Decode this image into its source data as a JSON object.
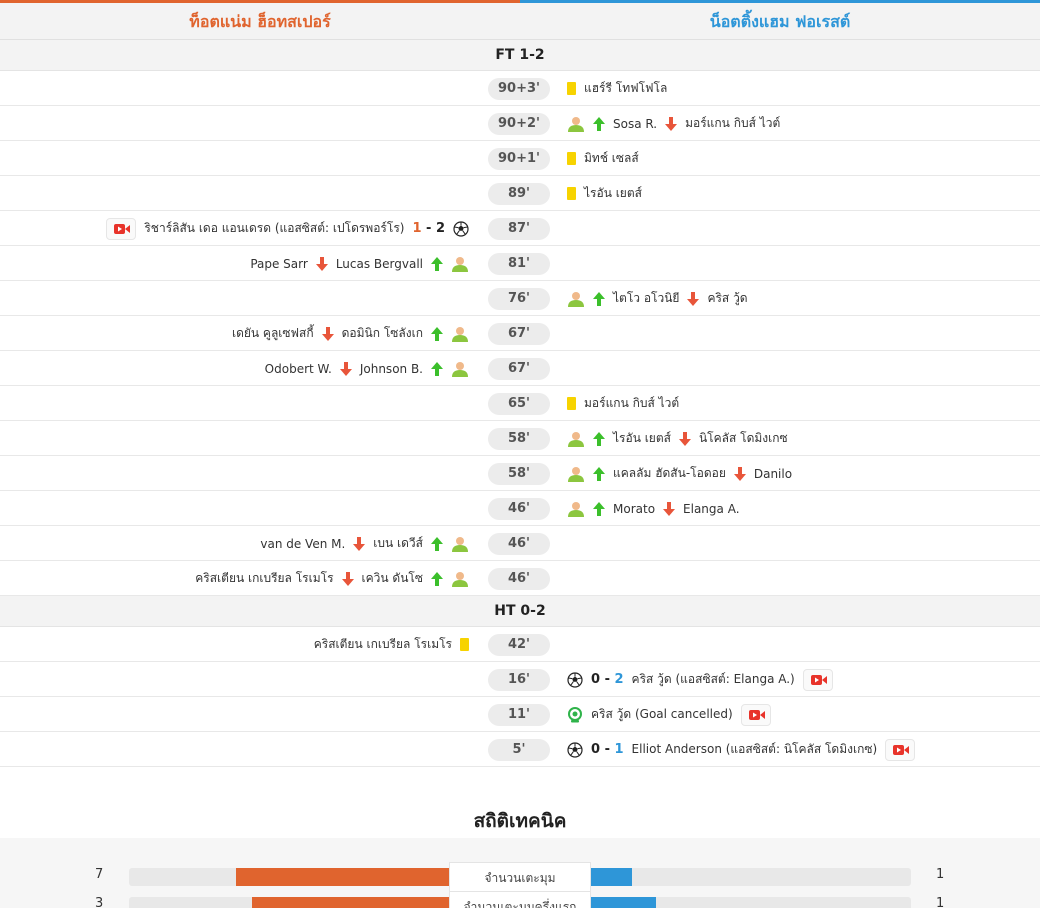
{
  "teams": {
    "home": "ท็อตแน่ม ฮ็อทสเปอร์",
    "away": "น็อตติ้งแฮม ฟอเรสต์"
  },
  "colors": {
    "home": "#e0642e",
    "away": "#2e96d8",
    "yellow_card": "#f7d300"
  },
  "sections": {
    "fulltime": "FT 1-2",
    "halftime": "HT 0-2"
  },
  "events": [
    {
      "minute": "90+3'",
      "away": {
        "type": "yellow",
        "player": "แฮร์รี โทฟโฟโล"
      }
    },
    {
      "minute": "90+2'",
      "away": {
        "type": "sub",
        "in": "Sosa R.",
        "out": "มอร์แกน กิบส์ ไวต์"
      }
    },
    {
      "minute": "90+1'",
      "away": {
        "type": "yellow",
        "player": "มิทช์ เซลส์"
      }
    },
    {
      "minute": "89'",
      "away": {
        "type": "yellow",
        "player": "ไรอัน เยตส์"
      }
    },
    {
      "minute": "87'",
      "home": {
        "type": "goal",
        "text": "ริชาร์ลิสัน เดอ แอนเดรด (แอสซิสต์: เปโดรพอร์โร)",
        "score_home": "1",
        "score_sep": "-",
        "score_away": "2"
      }
    },
    {
      "minute": "81'",
      "home": {
        "type": "sub",
        "in": "Lucas Bergvall",
        "out": "Pape Sarr"
      }
    },
    {
      "minute": "76'",
      "away": {
        "type": "sub",
        "in": "ไตโว อโวนิยี",
        "out": "คริส วู้ด"
      }
    },
    {
      "minute": "67'",
      "home": {
        "type": "sub",
        "in": "ดอมินิก โซลังเก",
        "out": "เดยัน คูลูเซฟสกี้"
      }
    },
    {
      "minute": "67'",
      "home": {
        "type": "sub",
        "in": "Johnson B.",
        "out": "Odobert W."
      }
    },
    {
      "minute": "65'",
      "away": {
        "type": "yellow",
        "player": "มอร์แกน กิบส์ ไวต์"
      }
    },
    {
      "minute": "58'",
      "away": {
        "type": "sub",
        "in": "ไรอัน เยตส์",
        "out": "นิโคลัส โดมิงเกซ"
      }
    },
    {
      "minute": "58'",
      "away": {
        "type": "sub",
        "in": "แคลลัม ฮัดสัน-โอดอย",
        "out": "Danilo"
      }
    },
    {
      "minute": "46'",
      "away": {
        "type": "sub",
        "in": "Morato",
        "out": "Elanga A."
      }
    },
    {
      "minute": "46'",
      "home": {
        "type": "sub",
        "in": "เบน เดวีส์",
        "out": "van de Ven M."
      }
    },
    {
      "minute": "46'",
      "home": {
        "type": "sub",
        "in": "เควิน ดันโซ",
        "out": "คริสเตียน เกเบรียล โรเมโร"
      }
    }
  ],
  "events_first_half": [
    {
      "minute": "42'",
      "home": {
        "type": "yellow",
        "player": "คริสเตียน เกเบรียล โรเมโร"
      }
    },
    {
      "minute": "16'",
      "away": {
        "type": "goal",
        "score_home": "0",
        "score_sep": "-",
        "score_away": "2",
        "text": "คริส วู้ด (แอสซิสต์: Elanga A.)"
      }
    },
    {
      "minute": "11'",
      "away": {
        "type": "var",
        "text": "คริส วู้ด (Goal cancelled)"
      }
    },
    {
      "minute": "5'",
      "away": {
        "type": "goal",
        "score_home": "0",
        "score_sep": "-",
        "score_away": "1",
        "text": "Elliot Anderson (แอสซิสต์: นิโคลัส โดมิงเกซ)"
      }
    }
  ],
  "stats": {
    "title": "สถิติเทคนิค",
    "rows": [
      {
        "label": "จำนวนเตะมุม",
        "home": "7",
        "away": "1",
        "home_share": 0.875,
        "away_share": 0.125
      },
      {
        "label": "จำนวนเตะมุมครึ่งแรก",
        "home": "3",
        "away": "1",
        "home_share": 0.75,
        "away_share": 0.25
      }
    ]
  }
}
